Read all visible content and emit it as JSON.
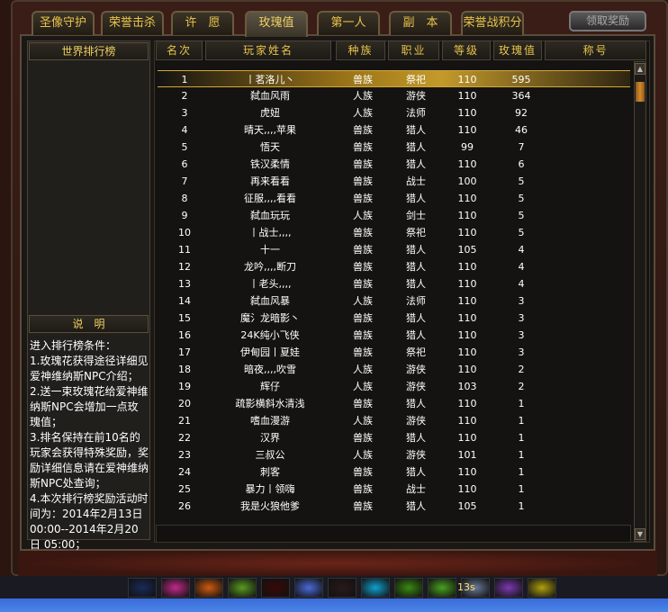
{
  "tabs": [
    {
      "label": "圣像守护"
    },
    {
      "label": "荣誉击杀"
    },
    {
      "label": "许　愿"
    },
    {
      "label": "玫瑰值",
      "active": true
    },
    {
      "label": "第一人"
    },
    {
      "label": "副　本"
    },
    {
      "label": "荣誉战积分"
    }
  ],
  "reward_button": "领取奖励",
  "left": {
    "title": "世界排行榜",
    "notes_title": "说　明",
    "notes": "进入排行榜条件：\n1.玫瑰花获得途径详细见爱神维纳斯NPC介绍；\n2.送一束玫瑰花给爱神维纳斯NPC会增加一点玫瑰值；\n3.排名保持在前10名的玩家会获得特殊奖励，奖励详细信息请在爱神维纳斯NPC处查询；\n4.本次排行榜奖励活动时间为：2014年2月13日 00:00--2014年2月20日 05:00；"
  },
  "table": {
    "headers": [
      "名次",
      "玩家姓名",
      "种族",
      "职业",
      "等级",
      "玫瑰值",
      "称号"
    ],
    "rows": [
      [
        "1",
        "丨茗洛儿丶",
        "兽族",
        "祭祀",
        "110",
        "595",
        ""
      ],
      [
        "2",
        "弑血风雨",
        "人族",
        "游侠",
        "110",
        "364",
        ""
      ],
      [
        "3",
        "虎妞",
        "人族",
        "法师",
        "110",
        "92",
        ""
      ],
      [
        "4",
        "晴天,,,,苹果",
        "兽族",
        "猎人",
        "110",
        "46",
        ""
      ],
      [
        "5",
        "悟天",
        "兽族",
        "猎人",
        "99",
        "7",
        ""
      ],
      [
        "6",
        "铁汉柔情",
        "兽族",
        "猎人",
        "110",
        "6",
        ""
      ],
      [
        "7",
        "再来看看",
        "兽族",
        "战士",
        "100",
        "5",
        ""
      ],
      [
        "8",
        "征服,,,,看看",
        "兽族",
        "猎人",
        "110",
        "5",
        ""
      ],
      [
        "9",
        "弑血玩玩",
        "人族",
        "剑士",
        "110",
        "5",
        ""
      ],
      [
        "10",
        "丨战士,,,,",
        "兽族",
        "祭祀",
        "110",
        "5",
        ""
      ],
      [
        "11",
        "十一",
        "兽族",
        "猎人",
        "105",
        "4",
        ""
      ],
      [
        "12",
        "龙吟,,,,断刀",
        "兽族",
        "猎人",
        "110",
        "4",
        ""
      ],
      [
        "13",
        "丨老头,,,,",
        "兽族",
        "猎人",
        "110",
        "4",
        ""
      ],
      [
        "14",
        "弑血风暴",
        "人族",
        "法师",
        "110",
        "3",
        ""
      ],
      [
        "15",
        "魔氵龙暗影丶",
        "兽族",
        "猎人",
        "110",
        "3",
        ""
      ],
      [
        "16",
        "24K纯小飞侠",
        "兽族",
        "猎人",
        "110",
        "3",
        ""
      ],
      [
        "17",
        "伊甸园丨夏娃",
        "兽族",
        "祭祀",
        "110",
        "3",
        ""
      ],
      [
        "18",
        "暗夜,,,,吹雪",
        "人族",
        "游侠",
        "110",
        "2",
        ""
      ],
      [
        "19",
        "辉仔",
        "人族",
        "游侠",
        "103",
        "2",
        ""
      ],
      [
        "20",
        "疏影横斜水清浅",
        "兽族",
        "猎人",
        "110",
        "1",
        ""
      ],
      [
        "21",
        "嗜血漫游",
        "人族",
        "游侠",
        "110",
        "1",
        ""
      ],
      [
        "22",
        "汉界",
        "兽族",
        "猎人",
        "110",
        "1",
        ""
      ],
      [
        "23",
        "三叔公",
        "人族",
        "游侠",
        "101",
        "1",
        ""
      ],
      [
        "24",
        "刺客",
        "兽族",
        "猎人",
        "110",
        "1",
        ""
      ],
      [
        "25",
        "暴力丨领嗨",
        "兽族",
        "战士",
        "110",
        "1",
        ""
      ],
      [
        "26",
        "我是火狼他爹",
        "兽族",
        "猎人",
        "105",
        "1",
        ""
      ]
    ],
    "selected_rank": "1"
  },
  "skillbar": {
    "cooldown": "13s"
  },
  "colors": {
    "accent": "#e8c34a",
    "selected": "#c39a2a"
  }
}
